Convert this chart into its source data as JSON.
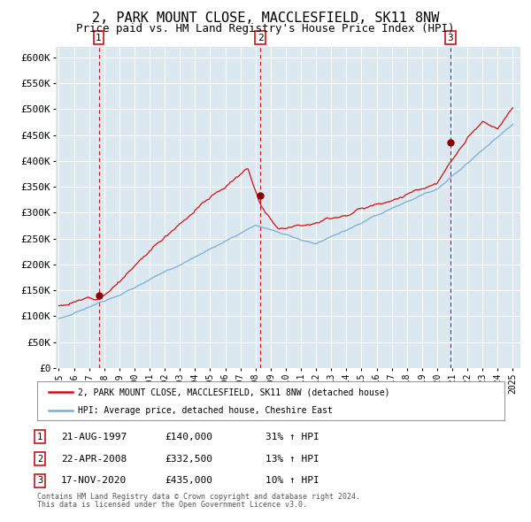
{
  "title": "2, PARK MOUNT CLOSE, MACCLESFIELD, SK11 8NW",
  "subtitle": "Price paid vs. HM Land Registry's House Price Index (HPI)",
  "title_fontsize": 11,
  "subtitle_fontsize": 9,
  "background_color": "#dce8f0",
  "plot_bg_color": "#dce8f0",
  "hpi_color": "#7aadd4",
  "property_color": "#cc1111",
  "vline_color_red": "#cc1111",
  "vline_color_gray": "#aaaaaa",
  "sale_marker_color": "#880000",
  "sale1_date": 1997.64,
  "sale1_price": 140000,
  "sale2_date": 2008.31,
  "sale2_price": 332500,
  "sale3_date": 2020.88,
  "sale3_price": 435000,
  "legend_property": "2, PARK MOUNT CLOSE, MACCLESFIELD, SK11 8NW (detached house)",
  "legend_hpi": "HPI: Average price, detached house, Cheshire East",
  "table_rows": [
    {
      "num": "1",
      "date": "21-AUG-1997",
      "price": "£140,000",
      "pct": "31% ↑ HPI"
    },
    {
      "num": "2",
      "date": "22-APR-2008",
      "price": "£332,500",
      "pct": "13% ↑ HPI"
    },
    {
      "num": "3",
      "date": "17-NOV-2020",
      "price": "£435,000",
      "pct": "10% ↑ HPI"
    }
  ],
  "footnote1": "Contains HM Land Registry data © Crown copyright and database right 2024.",
  "footnote2": "This data is licensed under the Open Government Licence v3.0.",
  "ylim": [
    0,
    620000
  ],
  "yticks": [
    0,
    50000,
    100000,
    150000,
    200000,
    250000,
    300000,
    350000,
    400000,
    450000,
    500000,
    550000,
    600000
  ],
  "ytick_labels": [
    "£0",
    "£50K",
    "£100K",
    "£150K",
    "£200K",
    "£250K",
    "£300K",
    "£350K",
    "£400K",
    "£450K",
    "£500K",
    "£550K",
    "£600K"
  ],
  "xtick_years": [
    1995,
    1996,
    1997,
    1998,
    1999,
    2000,
    2001,
    2002,
    2003,
    2004,
    2005,
    2006,
    2007,
    2008,
    2009,
    2010,
    2011,
    2012,
    2013,
    2014,
    2015,
    2016,
    2017,
    2018,
    2019,
    2020,
    2021,
    2022,
    2023,
    2024,
    2025
  ],
  "xlim": [
    1994.8,
    2025.5
  ]
}
